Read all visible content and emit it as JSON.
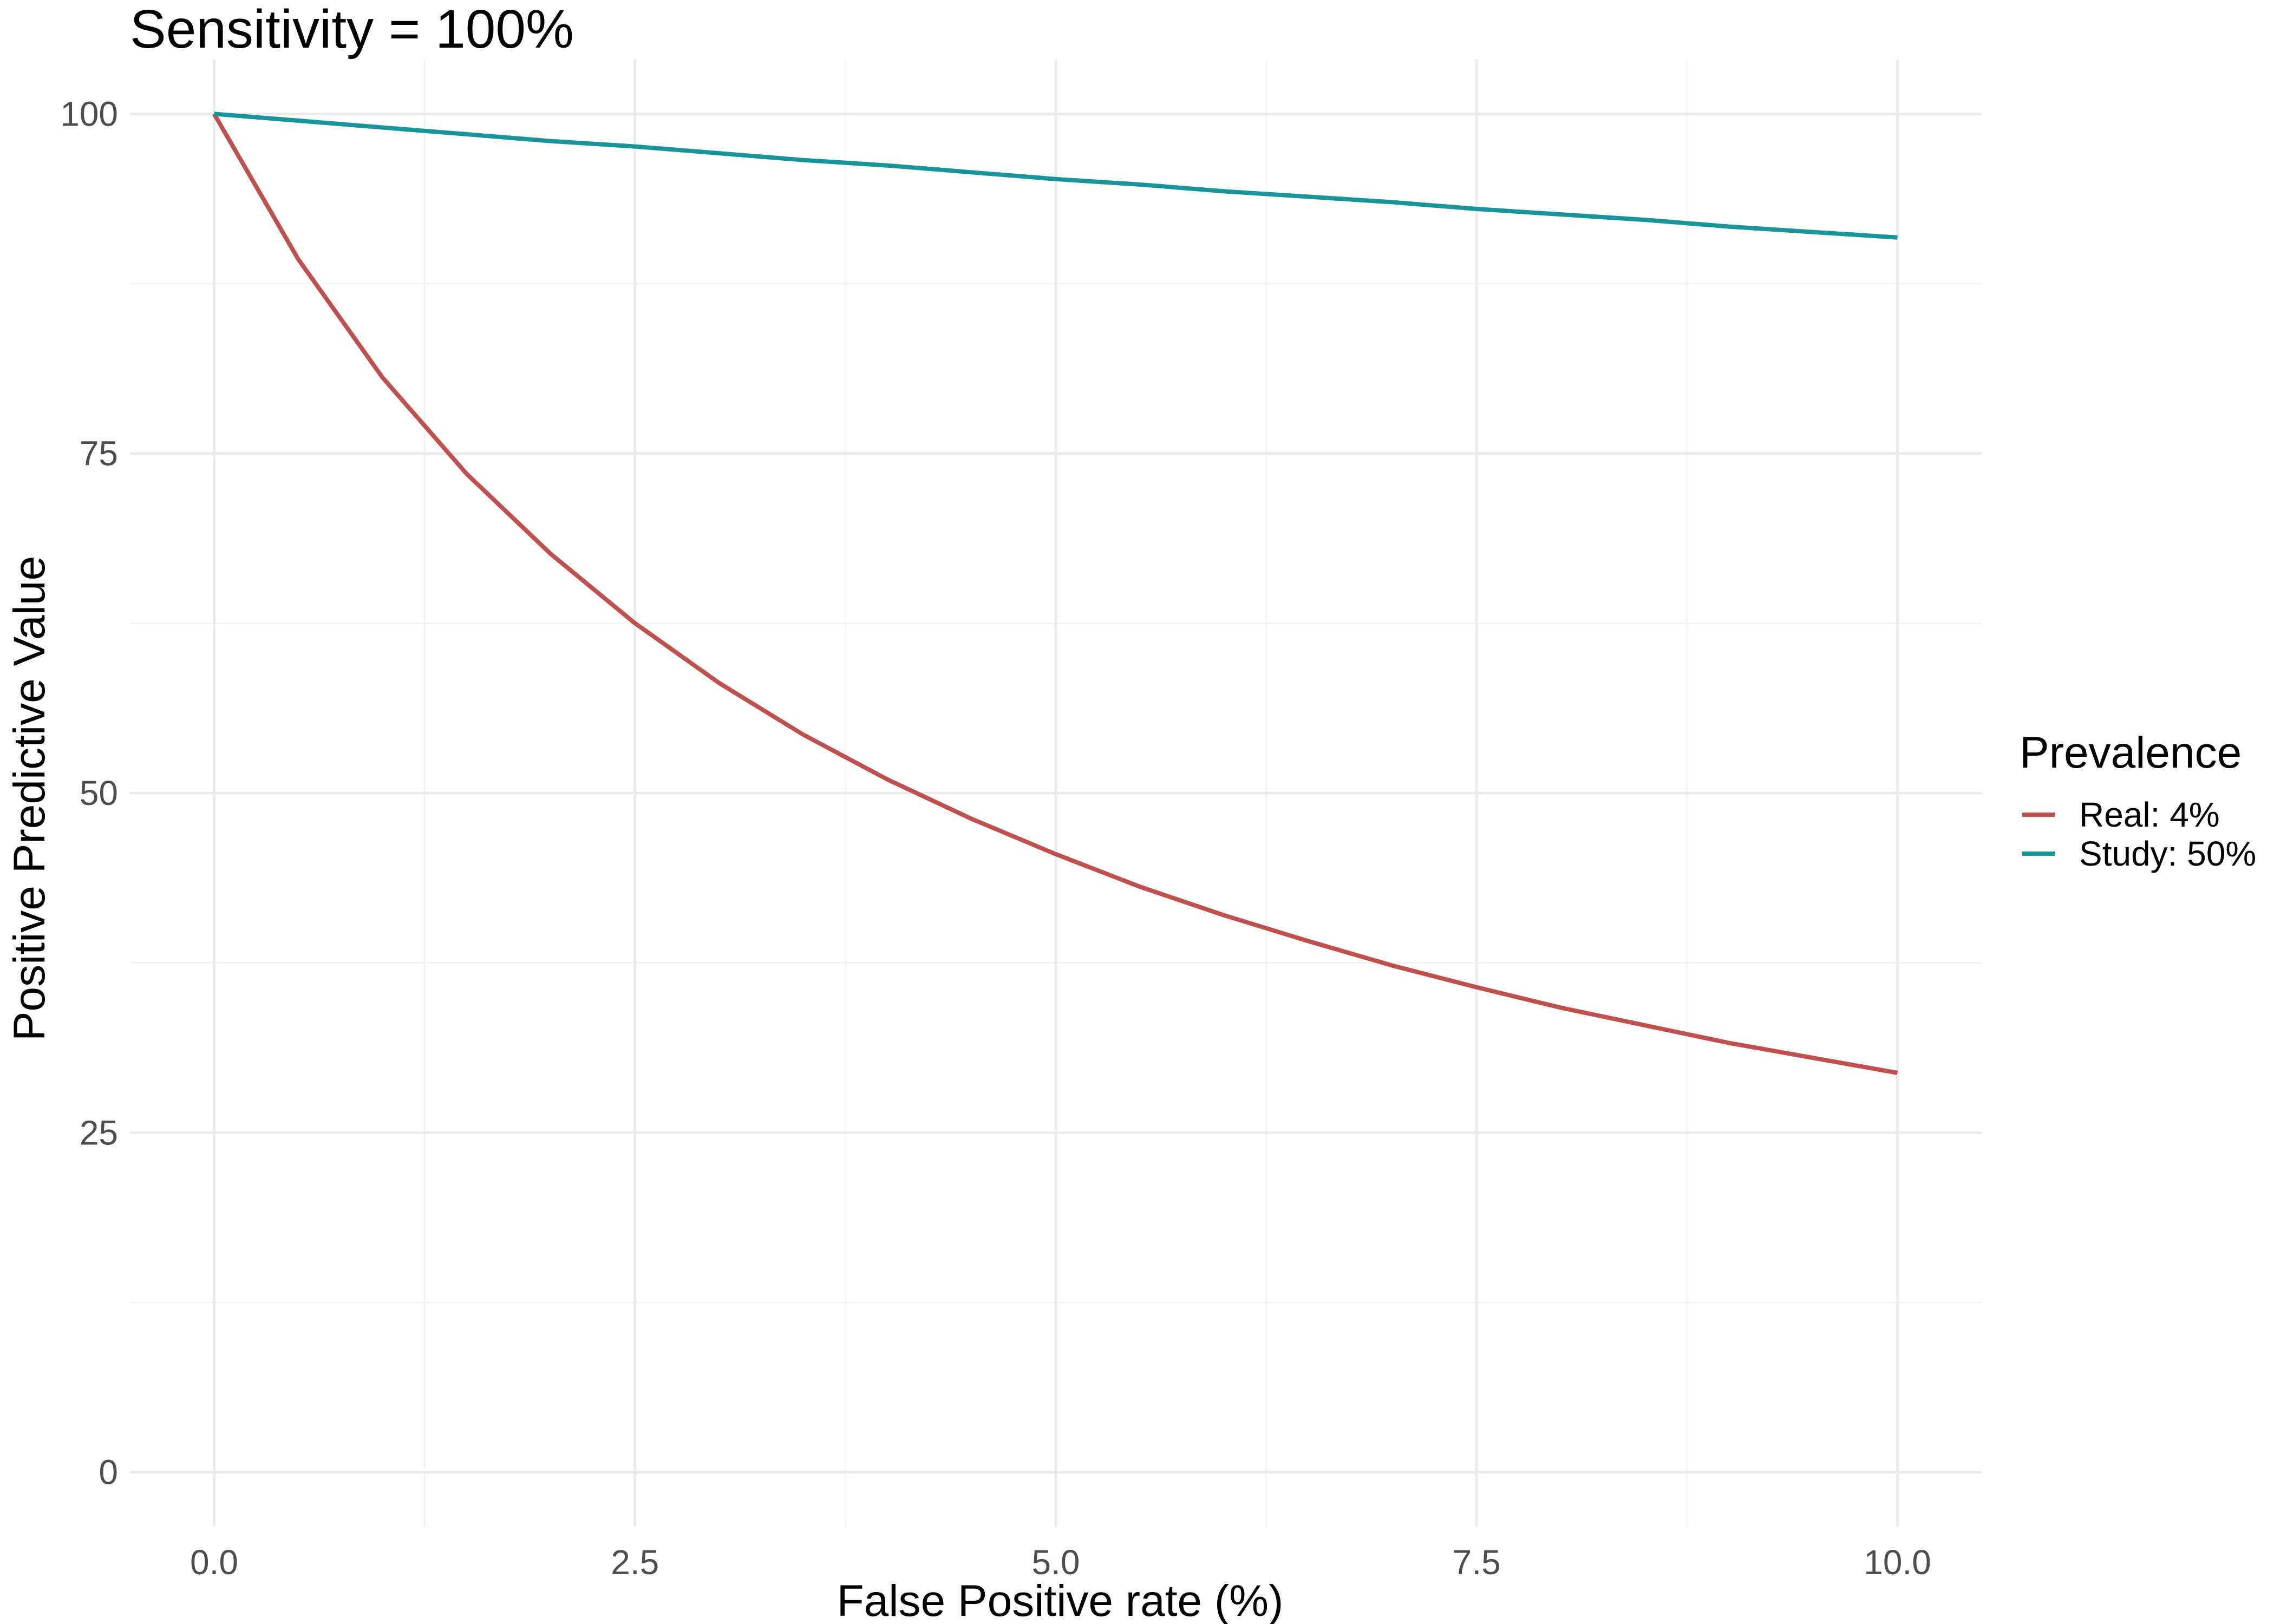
{
  "chart_data": {
    "type": "line",
    "title": "Sensitivity = 100%",
    "xlabel": "False Positive rate (%)",
    "ylabel": "Positive Predictive Value",
    "xlim": [
      -0.5,
      10.5
    ],
    "ylim": [
      -4,
      104
    ],
    "x_ticks": [
      0,
      2.5,
      5,
      7.5,
      10
    ],
    "x_tick_labels": [
      "0.0",
      "2.5",
      "5.0",
      "7.5",
      "10.0"
    ],
    "x_minor_ticks": [
      1.25,
      3.75,
      6.25,
      8.75
    ],
    "y_ticks": [
      0,
      25,
      50,
      75,
      100
    ],
    "y_tick_labels": [
      "0",
      "25",
      "50",
      "75",
      "100"
    ],
    "y_minor_ticks": [
      12.5,
      37.5,
      62.5,
      87.5
    ],
    "grid": true,
    "legend": {
      "title": "Prevalence",
      "position": "right"
    },
    "series": [
      {
        "name": "Real: 4%",
        "color": "#c0504d",
        "x": [
          0,
          0.5,
          1,
          1.5,
          2,
          2.5,
          3,
          3.5,
          4,
          4.5,
          5,
          5.5,
          6,
          6.5,
          7,
          7.5,
          8,
          8.5,
          9,
          9.5,
          10
        ],
        "y": [
          100,
          89.3,
          80.6,
          73.5,
          67.6,
          62.5,
          58.1,
          54.3,
          51.0,
          48.1,
          45.5,
          43.1,
          41.0,
          39.1,
          37.3,
          35.7,
          34.2,
          32.9,
          31.6,
          30.5,
          29.4
        ]
      },
      {
        "name": "Study: 50%",
        "color": "#17959a",
        "x": [
          0,
          0.5,
          1,
          1.5,
          2,
          2.5,
          3,
          3.5,
          4,
          4.5,
          5,
          5.5,
          6,
          6.5,
          7,
          7.5,
          8,
          8.5,
          9,
          9.5,
          10
        ],
        "y": [
          100,
          99.5,
          99.0,
          98.5,
          98.0,
          97.6,
          97.1,
          96.6,
          96.2,
          95.7,
          95.2,
          94.8,
          94.3,
          93.9,
          93.5,
          93.0,
          92.6,
          92.2,
          91.7,
          91.3,
          90.9
        ]
      }
    ]
  }
}
